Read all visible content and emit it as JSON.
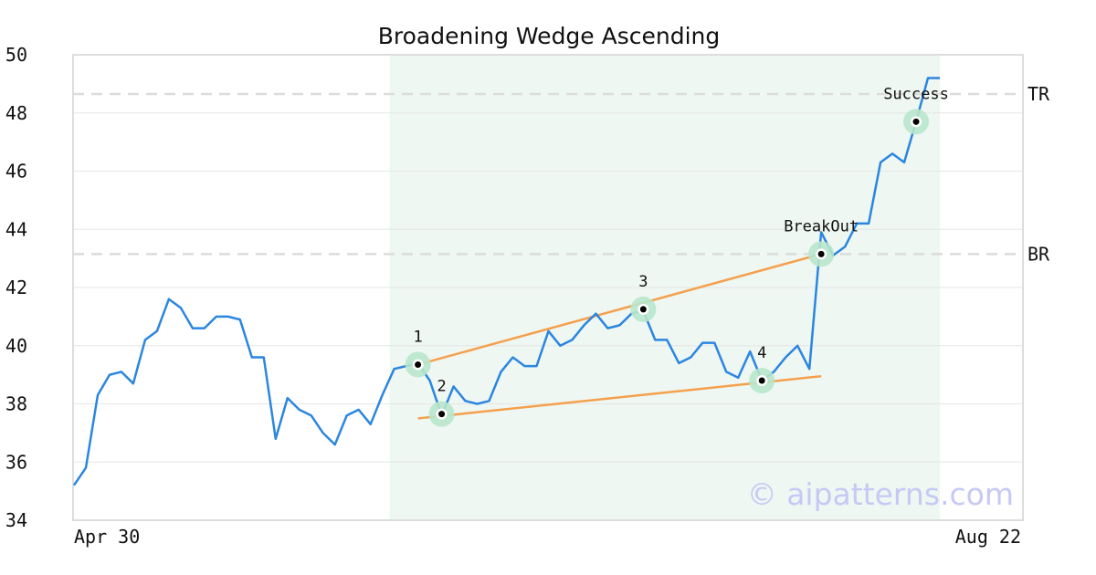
{
  "chart_data": {
    "type": "line",
    "title": "Broadening Wedge Ascending",
    "xlabel": "",
    "ylabel": "",
    "ylim": [
      34,
      50
    ],
    "yticks": [
      34,
      36,
      38,
      40,
      42,
      44,
      46,
      48,
      50
    ],
    "x_tick_labels": [
      "Apr 30",
      "Aug 22"
    ],
    "grid": "horizontal",
    "series": [
      {
        "color": "#2b86e0",
        "values": [
          35.2,
          35.8,
          38.3,
          39.0,
          39.1,
          38.7,
          40.2,
          40.5,
          41.6,
          41.3,
          40.6,
          40.6,
          41.0,
          41.0,
          40.9,
          39.6,
          39.6,
          36.8,
          38.2,
          37.8,
          37.6,
          37.0,
          36.6,
          37.6,
          37.8,
          37.3,
          38.3,
          39.2,
          39.3,
          39.4,
          38.8,
          37.6,
          38.6,
          38.1,
          38.0,
          38.1,
          39.1,
          39.6,
          39.3,
          39.3,
          40.5,
          40.0,
          40.2,
          40.7,
          41.1,
          40.6,
          40.7,
          41.1,
          41.2,
          40.2,
          40.2,
          39.4,
          39.6,
          40.1,
          40.1,
          39.1,
          38.9,
          39.8,
          38.8,
          39.1,
          39.6,
          40.0,
          39.2,
          43.9,
          43.1,
          43.4,
          44.2,
          44.2,
          46.3,
          46.6,
          46.3,
          47.7,
          49.2,
          49.2
        ]
      }
    ],
    "shaded_region": {
      "start_index": 27,
      "end_index": 73,
      "color": "#eef7f2"
    },
    "trendlines": [
      {
        "color": "#f5a04d",
        "from": {
          "index": 29,
          "value": 39.35
        },
        "to": {
          "index": 63,
          "value": 43.15
        }
      },
      {
        "color": "#f5a04d",
        "from": {
          "index": 29,
          "value": 37.5
        },
        "to": {
          "index": 63,
          "value": 38.95
        }
      }
    ],
    "points": [
      {
        "label": "1",
        "index": 29,
        "value": 39.35,
        "label_pos": "above"
      },
      {
        "label": "2",
        "index": 31,
        "value": 37.65,
        "label_pos": "above"
      },
      {
        "label": "3",
        "index": 48,
        "value": 41.25,
        "label_pos": "above"
      },
      {
        "label": "4",
        "index": 58,
        "value": 38.8,
        "label_pos": "above"
      },
      {
        "label": "BreakOut",
        "index": 63,
        "value": 43.15,
        "label_pos": "above"
      },
      {
        "label": "Success",
        "index": 71,
        "value": 47.7,
        "label_pos": "above"
      }
    ],
    "reference_lines": [
      {
        "label": "TR",
        "value": 48.65
      },
      {
        "label": "BR",
        "value": 43.15
      }
    ],
    "watermark": "© aipatterns.com"
  }
}
